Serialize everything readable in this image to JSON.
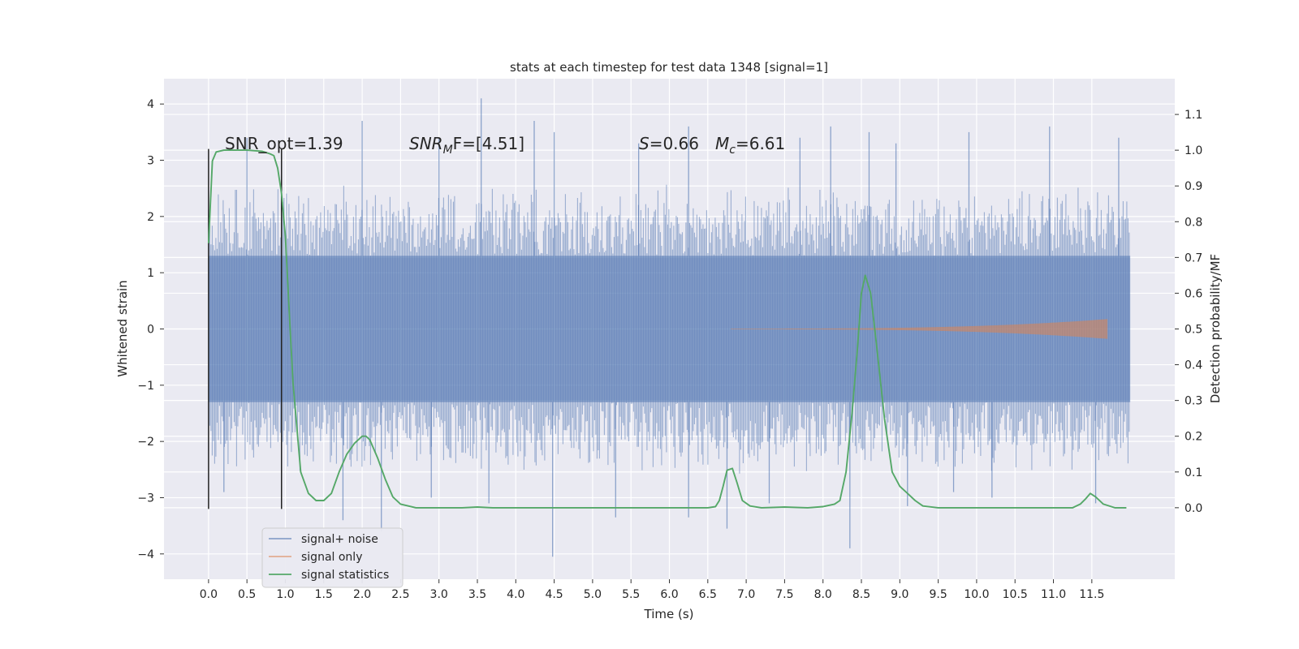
{
  "chart_data": {
    "type": "line",
    "title": "stats at each timestep for test data 1348 [signal=1]",
    "xlabel": "Time (s)",
    "ylabel_left": "Whitened strain",
    "ylabel_right": "Detection probability/MF",
    "xlim": [
      -0.58,
      12.58
    ],
    "ylim_left": [
      -4.45,
      4.45
    ],
    "ylim_right": [
      -0.2,
      1.2
    ],
    "x_ticks": [
      0.0,
      0.5,
      1.0,
      1.5,
      2.0,
      2.5,
      3.0,
      3.5,
      4.0,
      4.5,
      5.0,
      5.5,
      6.0,
      6.5,
      7.0,
      7.5,
      8.0,
      8.5,
      9.0,
      9.5,
      10.0,
      10.5,
      11.0,
      11.5
    ],
    "x_tick_labels": [
      "0.0",
      "0.5",
      "1.0",
      "1.5",
      "2.0",
      "2.5",
      "3.0",
      "3.5",
      "4.0",
      "4.5",
      "5.0",
      "5.5",
      "6.0",
      "6.5",
      "7.0",
      "7.5",
      "8.0",
      "8.5",
      "9.0",
      "9.5",
      "10.0",
      "10.5",
      "11.0",
      "11.5"
    ],
    "y_left_ticks": [
      -4,
      -3,
      -2,
      -1,
      0,
      1,
      2,
      3,
      4
    ],
    "y_left_tick_labels": [
      "−4",
      "−3",
      "−2",
      "−1",
      "0",
      "1",
      "2",
      "3",
      "4"
    ],
    "y_right_ticks": [
      0.0,
      0.1,
      0.2,
      0.3,
      0.4,
      0.5,
      0.6,
      0.7,
      0.8,
      0.9,
      1.0,
      1.1
    ],
    "y_right_tick_labels": [
      "0.0",
      "0.1",
      "0.2",
      "0.3",
      "0.4",
      "0.5",
      "0.6",
      "0.7",
      "0.8",
      "0.9",
      "1.0",
      "1.1"
    ],
    "grid": true,
    "legend_position": "lower-left",
    "annotations": {
      "snr_opt": "SNR_opt=1.39",
      "snr_mf_base": "SNR",
      "snr_mf_sub": "M",
      "snr_mf_rest": "F=[4.51]",
      "s_base": "S",
      "s_rest": "=0.66",
      "mc_base": "M",
      "mc_sub": "c",
      "mc_rest": "=6.61"
    },
    "markers": [
      {
        "x": 0.0,
        "y_range": [
          -3.2,
          3.2
        ]
      },
      {
        "x": 0.95,
        "y_range": [
          -3.2,
          3.2
        ]
      }
    ],
    "series": [
      {
        "name": "signal+ noise",
        "color": "#4c72b0",
        "kind": "noise",
        "x_range": [
          0.0,
          12.0
        ],
        "core_band": [
          -1.3,
          1.3
        ],
        "typical_extent": [
          -2.6,
          2.6
        ],
        "spikes": [
          {
            "x": 3.55,
            "y": 4.1
          },
          {
            "x": 4.24,
            "y": 3.7
          },
          {
            "x": 2.0,
            "y": 3.7
          },
          {
            "x": 10.95,
            "y": 3.6
          },
          {
            "x": 6.25,
            "y": 3.6
          },
          {
            "x": 8.1,
            "y": 3.6
          },
          {
            "x": 8.6,
            "y": 3.5
          },
          {
            "x": 4.5,
            "y": 3.5
          },
          {
            "x": 9.9,
            "y": 3.5
          },
          {
            "x": 3.0,
            "y": 3.4
          },
          {
            "x": 7.7,
            "y": 3.4
          },
          {
            "x": 0.5,
            "y": 3.4
          },
          {
            "x": 11.85,
            "y": 3.4
          },
          {
            "x": 5.6,
            "y": 3.3
          },
          {
            "x": 8.95,
            "y": 3.3
          },
          {
            "x": 4.48,
            "y": -4.05
          },
          {
            "x": 8.35,
            "y": -3.9
          },
          {
            "x": 2.25,
            "y": -3.6
          },
          {
            "x": 6.75,
            "y": -3.55
          },
          {
            "x": 5.3,
            "y": -3.35
          },
          {
            "x": 1.75,
            "y": -3.4
          },
          {
            "x": 6.25,
            "y": -3.35
          },
          {
            "x": 11.55,
            "y": -3.1
          },
          {
            "x": 0.2,
            "y": -2.9
          },
          {
            "x": 9.1,
            "y": -3.15
          },
          {
            "x": 7.3,
            "y": -3.1
          },
          {
            "x": 10.2,
            "y": -3.0
          },
          {
            "x": 2.9,
            "y": -3.0
          },
          {
            "x": 3.65,
            "y": -3.1
          },
          {
            "x": 9.7,
            "y": -2.9
          }
        ]
      },
      {
        "name": "signal only",
        "color": "#dd8452",
        "kind": "chirp",
        "x_range": [
          6.8,
          11.7
        ],
        "amplitude_range": [
          0.0,
          0.17
        ]
      },
      {
        "name": "signal statistics",
        "color": "#55a868",
        "kind": "line",
        "axis": "right",
        "x": [
          0.0,
          0.05,
          0.1,
          0.2,
          0.3,
          0.5,
          0.7,
          0.8,
          0.85,
          0.9,
          0.95,
          1.0,
          1.05,
          1.1,
          1.2,
          1.3,
          1.4,
          1.5,
          1.6,
          1.7,
          1.8,
          1.9,
          2.0,
          2.05,
          2.1,
          2.2,
          2.3,
          2.4,
          2.5,
          2.7,
          3.0,
          3.3,
          3.5,
          3.7,
          4.0,
          4.5,
          5.0,
          5.5,
          6.0,
          6.3,
          6.5,
          6.6,
          6.65,
          6.7,
          6.75,
          6.82,
          6.88,
          6.95,
          7.05,
          7.2,
          7.5,
          7.8,
          8.0,
          8.15,
          8.22,
          8.3,
          8.38,
          8.45,
          8.5,
          8.55,
          8.62,
          8.7,
          8.8,
          8.9,
          9.0,
          9.1,
          9.2,
          9.3,
          9.5,
          10.0,
          10.5,
          11.0,
          11.25,
          11.35,
          11.42,
          11.48,
          11.55,
          11.65,
          11.8,
          11.95
        ],
        "y": [
          0.74,
          0.97,
          0.995,
          1.0,
          1.0,
          1.0,
          0.997,
          0.99,
          0.985,
          0.95,
          0.88,
          0.76,
          0.55,
          0.35,
          0.1,
          0.04,
          0.02,
          0.02,
          0.04,
          0.1,
          0.15,
          0.18,
          0.2,
          0.2,
          0.19,
          0.14,
          0.08,
          0.03,
          0.01,
          0.0,
          0.0,
          0.0,
          0.002,
          0.0,
          0.0,
          0.0,
          0.0,
          0.0,
          0.0,
          0.0,
          0.0,
          0.003,
          0.02,
          0.06,
          0.105,
          0.11,
          0.07,
          0.02,
          0.005,
          0.0,
          0.002,
          0.0,
          0.003,
          0.01,
          0.02,
          0.1,
          0.27,
          0.45,
          0.6,
          0.65,
          0.6,
          0.45,
          0.25,
          0.1,
          0.06,
          0.04,
          0.02,
          0.005,
          0.0,
          0.0,
          0.0,
          0.0,
          0.0,
          0.01,
          0.025,
          0.04,
          0.03,
          0.01,
          0.0,
          0.0
        ]
      }
    ]
  }
}
